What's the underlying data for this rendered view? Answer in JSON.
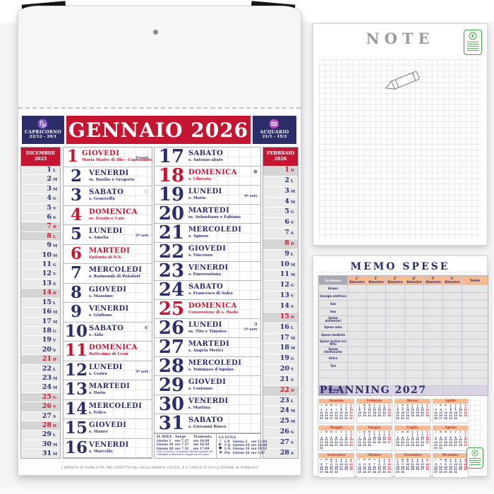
{
  "main_calendar": {
    "title": "GENNAIO 2026",
    "zodiac_left": {
      "symbol": "♑",
      "name": "CAPRICORNO",
      "dates": "22/12 - 20/1"
    },
    "zodiac_right": {
      "symbol": "♒",
      "name": "ACQUARIO",
      "dates": "21/1 - 19/2"
    },
    "prev_month": {
      "name": "DICEMBRE",
      "year": "2025",
      "days": [
        [
          "1",
          "L",
          0
        ],
        [
          "2",
          "M",
          0
        ],
        [
          "3",
          "M",
          0
        ],
        [
          "4",
          "G",
          0
        ],
        [
          "5",
          "V",
          0
        ],
        [
          "6",
          "S",
          0
        ],
        [
          "7",
          "D",
          1
        ],
        [
          "8",
          "L",
          1
        ],
        [
          "9",
          "M",
          0
        ],
        [
          "10",
          "M",
          0
        ],
        [
          "11",
          "G",
          0
        ],
        [
          "12",
          "V",
          0
        ],
        [
          "13",
          "S",
          0
        ],
        [
          "14",
          "D",
          1
        ],
        [
          "15",
          "L",
          0
        ],
        [
          "16",
          "M",
          0
        ],
        [
          "17",
          "M",
          0
        ],
        [
          "18",
          "G",
          0
        ],
        [
          "19",
          "V",
          0
        ],
        [
          "20",
          "S",
          0
        ],
        [
          "21",
          "D",
          1
        ],
        [
          "22",
          "L",
          0
        ],
        [
          "23",
          "M",
          0
        ],
        [
          "24",
          "M",
          0
        ],
        [
          "25",
          "G",
          1
        ],
        [
          "26",
          "V",
          1
        ],
        [
          "27",
          "S",
          0
        ],
        [
          "28",
          "D",
          1
        ],
        [
          "29",
          "L",
          0
        ],
        [
          "30",
          "M",
          0
        ],
        [
          "31",
          "M",
          0
        ]
      ]
    },
    "next_month": {
      "name": "FEBBRAIO",
      "year": "2026",
      "days": [
        [
          "1",
          "D",
          1
        ],
        [
          "2",
          "L",
          0
        ],
        [
          "3",
          "M",
          0
        ],
        [
          "4",
          "M",
          0
        ],
        [
          "5",
          "G",
          0
        ],
        [
          "6",
          "V",
          0
        ],
        [
          "7",
          "S",
          0
        ],
        [
          "8",
          "D",
          1
        ],
        [
          "9",
          "L",
          0
        ],
        [
          "10",
          "M",
          0
        ],
        [
          "11",
          "M",
          0
        ],
        [
          "12",
          "G",
          0
        ],
        [
          "13",
          "V",
          0
        ],
        [
          "14",
          "S",
          0
        ],
        [
          "15",
          "D",
          1
        ],
        [
          "16",
          "L",
          0
        ],
        [
          "17",
          "M",
          0
        ],
        [
          "18",
          "M",
          0
        ],
        [
          "19",
          "G",
          0
        ],
        [
          "20",
          "V",
          0
        ],
        [
          "21",
          "S",
          0
        ],
        [
          "22",
          "D",
          1
        ],
        [
          "23",
          "L",
          0
        ],
        [
          "24",
          "M",
          0
        ],
        [
          "25",
          "M",
          0
        ],
        [
          "26",
          "G",
          0
        ],
        [
          "27",
          "V",
          0
        ],
        [
          "28",
          "S",
          0
        ]
      ]
    },
    "days": [
      {
        "n": "1",
        "name": "GIOVEDI",
        "saint": "Maria Madre di Dio - Capodanno",
        "hol": 1,
        "note": "1ª sett."
      },
      {
        "n": "2",
        "name": "VENERDI",
        "saint": "ss. Basilio e Gregorio"
      },
      {
        "n": "3",
        "name": "SABATO",
        "saint": "s. Genoveffa",
        "moon": "○"
      },
      {
        "n": "4",
        "name": "DOMENICA",
        "saint": "ss. Erasto e Caio",
        "hol": 1
      },
      {
        "n": "5",
        "name": "LUNEDI",
        "saint": "s. Amelia",
        "note": "2ª sett."
      },
      {
        "n": "6",
        "name": "MARTEDI",
        "saint": "Epifania di N.S.",
        "hol": 1
      },
      {
        "n": "7",
        "name": "MERCOLEDI",
        "saint": "s. Raimondo di Peñafort"
      },
      {
        "n": "8",
        "name": "GIOVEDI",
        "saint": "s. Massimo"
      },
      {
        "n": "9",
        "name": "VENERDI",
        "saint": "s. Giuliano"
      },
      {
        "n": "10",
        "name": "SABATO",
        "saint": "s. Aldo",
        "moon": "◐"
      },
      {
        "n": "11",
        "name": "DOMENICA",
        "saint": "Battesimo di Gesù",
        "hol": 1
      },
      {
        "n": "12",
        "name": "LUNEDI",
        "saint": "s. Cesira",
        "note": "3ª sett."
      },
      {
        "n": "13",
        "name": "MARTEDI",
        "saint": "s. Ilario"
      },
      {
        "n": "14",
        "name": "MERCOLEDI",
        "saint": "s. Felice"
      },
      {
        "n": "15",
        "name": "GIOVEDI",
        "saint": "s. Mauro"
      },
      {
        "n": "16",
        "name": "VENERDI",
        "saint": "s. Marcello"
      },
      {
        "n": "17",
        "name": "SABATO",
        "saint": "s. Antonio abate"
      },
      {
        "n": "18",
        "name": "DOMENICA",
        "saint": "s. Liberata",
        "hol": 1,
        "moon": "●"
      },
      {
        "n": "19",
        "name": "LUNEDI",
        "saint": "s. Mario",
        "note": "4ª sett."
      },
      {
        "n": "20",
        "name": "MARTEDI",
        "saint": "ss. Sebastiano e Fabiano"
      },
      {
        "n": "21",
        "name": "MERCOLEDI",
        "saint": "s. Agnese"
      },
      {
        "n": "22",
        "name": "GIOVEDI",
        "saint": "s. Vincenzo"
      },
      {
        "n": "23",
        "name": "VENERDI",
        "saint": "s. Emerenziana"
      },
      {
        "n": "24",
        "name": "SABATO",
        "saint": "s. Francesco di Sales"
      },
      {
        "n": "25",
        "name": "DOMENICA",
        "saint": "Conversione di s. Paolo",
        "hol": 1
      },
      {
        "n": "26",
        "name": "LUNEDI",
        "saint": "ss. Tito e Timoteo",
        "note": "5ª sett.",
        "moon": "◑"
      },
      {
        "n": "27",
        "name": "MARTEDI",
        "saint": "s. Angela Merici"
      },
      {
        "n": "28",
        "name": "MERCOLEDI",
        "saint": "s. Tommaso d'Aquino"
      },
      {
        "n": "29",
        "name": "GIOVEDI",
        "saint": "s. Costanzo"
      },
      {
        "n": "30",
        "name": "VENERDI",
        "saint": "s. Martina"
      },
      {
        "n": "31",
        "name": "SABATO",
        "saint": "s. Giovanni Bosco"
      }
    ],
    "sun": {
      "title": "IL SOLE",
      "col1": "Sorge",
      "col2": "Tramonta",
      "rows": [
        [
          "Giorno 1",
          "ore 7.37",
          "ore 16.49"
        ],
        [
          "Giorno 10",
          "ore 7.37",
          "ore 16.58"
        ],
        [
          "Giorno 20",
          "ore 7.32",
          "ore 17.09"
        ]
      ],
      "note": "Nota: la levata e il tramonto del sole riportati nel calendario si riferiscono sempre ad ora solare."
    },
    "moon": {
      "title": "LA LUNA",
      "rows": [
        [
          "○",
          "L.P.",
          "Giorno 3",
          "ore 11.02"
        ],
        [
          "◐",
          "U.Q.",
          "Giorno 10",
          "ore 16.48"
        ],
        [
          "●",
          "L.N.",
          "Giorno 18",
          "ore 19.52"
        ],
        [
          "◑",
          "P.Q.",
          "Giorno 26",
          "ore 5.47"
        ]
      ]
    },
    "footer": "L'IMPOSTA DI PUBBLICITÀ, NEL RISPETTO DEL REGOLAMENTO LOCALE, È A CARICO DI CHI LO ESPONE AL PUBBLICO"
  },
  "note_page": {
    "title": "NOTE"
  },
  "memo_page": {
    "title": "MEMO SPESE",
    "table": {
      "corner": "Scadenze",
      "columns": [
        "1° Bimestre",
        "2° Bimestre",
        "3° Bimestre",
        "4° Bimestre",
        "5° Bimestre",
        "6° Bimestre",
        "Totale"
      ],
      "rows": [
        "Acqua",
        "Energia elettrica",
        "Gas",
        "Imu",
        "Spese alimentari",
        "Spese auto",
        "Spese mediche",
        "Spese mutuo e/o fitto",
        "Spese telefoniche",
        "Unico",
        "Tari",
        "",
        ""
      ],
      "total": "Totale"
    },
    "planning": {
      "title": "PLANNING 2027",
      "dow": [
        "L",
        "M",
        "M",
        "G",
        "V",
        "S",
        "D"
      ],
      "months": [
        [
          "Gennaio",
          4,
          31
        ],
        [
          "Febbraio",
          0,
          28
        ],
        [
          "Marzo",
          0,
          31
        ],
        [
          "Aprile",
          3,
          30
        ],
        [
          "Maggio",
          5,
          31
        ],
        [
          "Giugno",
          1,
          30
        ],
        [
          "Luglio",
          3,
          31
        ],
        [
          "Agosto",
          6,
          31
        ],
        [
          "Settembre",
          2,
          30
        ],
        [
          "Ottobre",
          4,
          31
        ],
        [
          "Novembre",
          0,
          30
        ],
        [
          "Dicembre",
          2,
          31
        ]
      ]
    }
  },
  "colors": {
    "navy": "#2a2d68",
    "red": "#c61531",
    "salmon": "#f5ba92",
    "lavender": "#d9d3e3",
    "eco_green": "#3aa43f"
  }
}
